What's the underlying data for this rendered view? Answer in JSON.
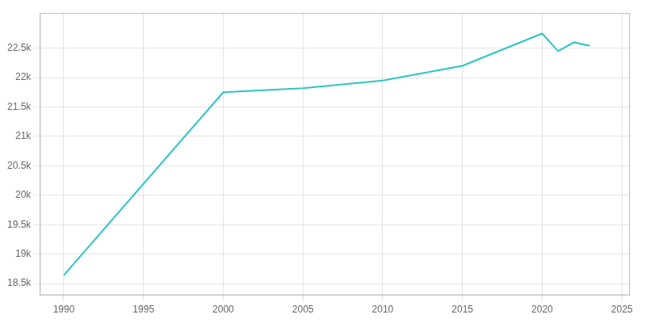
{
  "chart_data": {
    "type": "line",
    "x": [
      1990,
      2000,
      2005,
      2010,
      2015,
      2020,
      2021,
      2022,
      2023
    ],
    "values": [
      18640,
      21750,
      21820,
      21950,
      22200,
      22750,
      22450,
      22600,
      22540
    ],
    "color": "#2EC4C4",
    "xlim": [
      1988.5,
      2025.5
    ],
    "ylim": [
      18300,
      23100
    ],
    "xticks": [
      1990,
      1995,
      2000,
      2005,
      2010,
      2015,
      2020,
      2025
    ],
    "yticks": [
      {
        "value": 18500,
        "label": "18.5k"
      },
      {
        "value": 19000,
        "label": "19k"
      },
      {
        "value": 19500,
        "label": "19.5k"
      },
      {
        "value": 20000,
        "label": "20k"
      },
      {
        "value": 20500,
        "label": "20.5k"
      },
      {
        "value": 21000,
        "label": "21k"
      },
      {
        "value": 21500,
        "label": "21.5k"
      },
      {
        "value": 22000,
        "label": "22k"
      },
      {
        "value": 22500,
        "label": "22.5k"
      }
    ],
    "grid": true
  }
}
